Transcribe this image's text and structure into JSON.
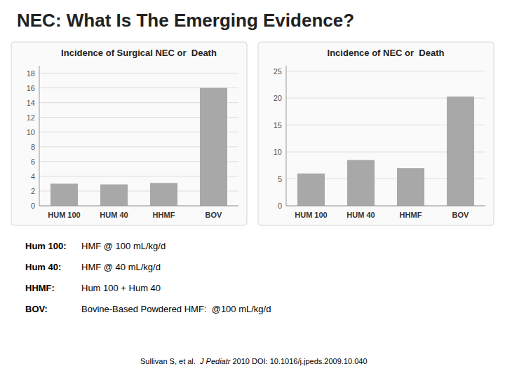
{
  "title": "NEC: What Is The Emerging Evidence?",
  "chart_data": [
    {
      "type": "bar",
      "title": "Incidence of Surgical NEC or  Death",
      "categories": [
        "HUM 100",
        "HUM 40",
        "HHMF",
        "BOV"
      ],
      "values": [
        3.0,
        2.9,
        3.1,
        16.0
      ],
      "color": "#a8a8a8",
      "ylim": [
        0,
        19
      ],
      "yticks": [
        0,
        2,
        4,
        6,
        8,
        10,
        12,
        14,
        16,
        18
      ],
      "grid": true
    },
    {
      "type": "bar",
      "title": "Incidence of NEC or  Death",
      "categories": [
        "HUM 100",
        "HUM 40",
        "HHMF",
        "BOV"
      ],
      "values": [
        6.0,
        8.5,
        7.0,
        20.3
      ],
      "color": "#a8a8a8",
      "ylim": [
        0,
        26
      ],
      "yticks": [
        0,
        5,
        10,
        15,
        20,
        25
      ],
      "grid": true
    }
  ],
  "annotations": [
    "Hum 100:",
    "HMF @ 100 mL/kg/d",
    "Hum 40:",
    "HMF @ 40 mL/kg/d",
    "HHMF:",
    "Hum 100 + Hum 40",
    "BOV:",
    "Bovine-Based Powdered HMF:  @100 mL/kg/d",
    "Sullivan S, et al.  ",
    "J Pediatr",
    " 2010 DOI: 10.1016/j.jpeds.2009.10.040"
  ]
}
